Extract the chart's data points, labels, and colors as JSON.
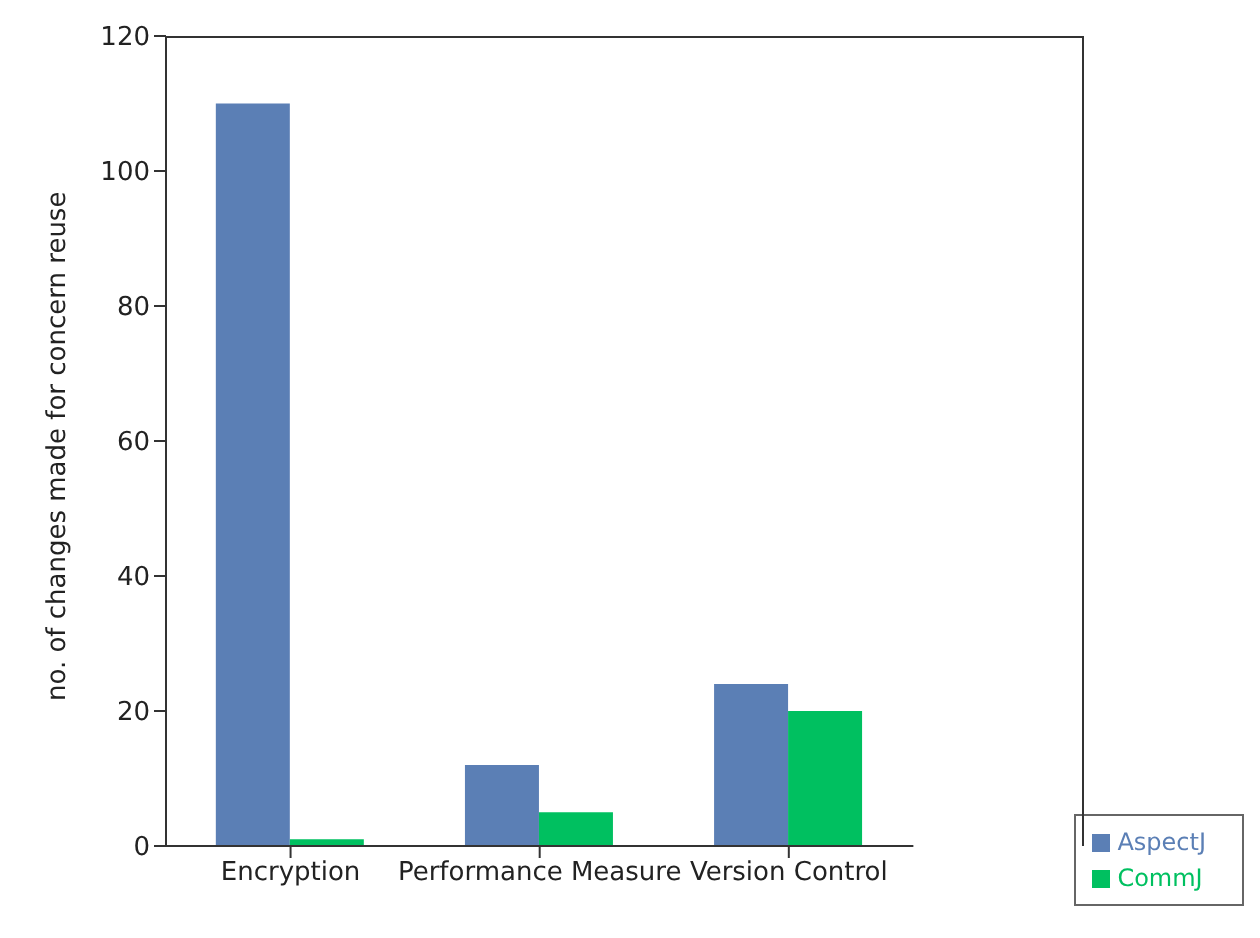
{
  "chart_data": {
    "type": "bar",
    "ylabel": "no. of changes made for concern reuse",
    "categories": [
      "Encryption",
      "Performance Measure",
      "Version Control"
    ],
    "series": [
      {
        "name": "AspectJ",
        "color": "#5b7fb5",
        "values": [
          110,
          12,
          24
        ]
      },
      {
        "name": "CommJ",
        "color": "#00c060",
        "values": [
          1,
          5,
          20
        ]
      }
    ],
    "ylim": [
      0,
      120
    ],
    "yticks": [
      0,
      20,
      40,
      60,
      80,
      100,
      120
    ],
    "grid": false,
    "legend": "bottom right"
  }
}
